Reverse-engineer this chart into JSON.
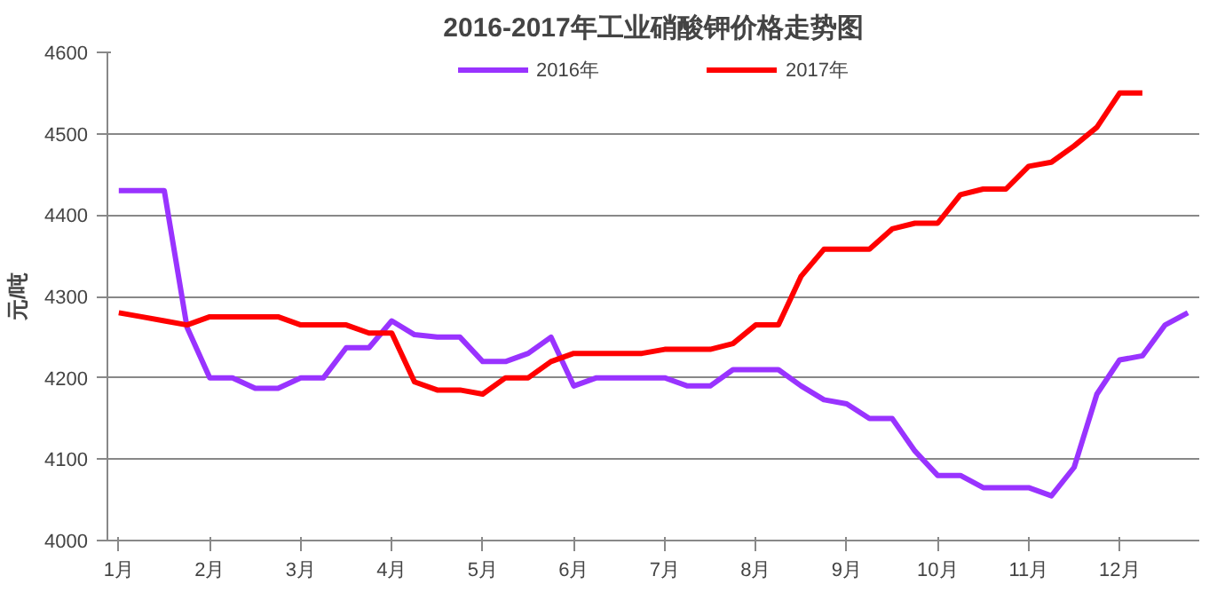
{
  "chart_data": {
    "type": "line",
    "title": "2016-2017年工业硝酸钾价格走势图",
    "ylabel": "元/吨",
    "categories": [
      "1月",
      null,
      null,
      null,
      "2月",
      null,
      null,
      null,
      "3月",
      null,
      null,
      null,
      "4月",
      null,
      null,
      null,
      "5月",
      null,
      null,
      null,
      "6月",
      null,
      null,
      null,
      "7月",
      null,
      null,
      null,
      "8月",
      null,
      null,
      null,
      "9月",
      null,
      null,
      null,
      "10月",
      null,
      null,
      null,
      "11月",
      null,
      null,
      null,
      "12月",
      null,
      null,
      null
    ],
    "series": [
      {
        "name": "2016年",
        "color": "#9933ff",
        "values": [
          4430,
          4430,
          4430,
          4262,
          4200,
          4200,
          4187,
          4187,
          4200,
          4200,
          4237,
          4237,
          4270,
          4253,
          4250,
          4250,
          4220,
          4220,
          4230,
          4250,
          4190,
          4200,
          4200,
          4200,
          4200,
          4190,
          4190,
          4210,
          4210,
          4210,
          4190,
          4173,
          4168,
          4150,
          4150,
          4110,
          4080,
          4080,
          4065,
          4065,
          4065,
          4055,
          4090,
          4180,
          4222,
          4227,
          4265,
          4280
        ]
      },
      {
        "name": "2017年",
        "color": "#ff0000",
        "values": [
          4280,
          4275,
          4270,
          4265,
          4275,
          4275,
          4275,
          4275,
          4265,
          4265,
          4265,
          4255,
          4255,
          4195,
          4185,
          4185,
          4180,
          4200,
          4200,
          4220,
          4230,
          4230,
          4230,
          4230,
          4235,
          4235,
          4235,
          4242,
          4265,
          4265,
          4325,
          4358,
          4358,
          4358,
          4383,
          4390,
          4390,
          4425,
          4432,
          4432,
          4460,
          4465,
          4485,
          4508,
          4550,
          4550,
          null,
          null
        ]
      }
    ],
    "ylim": [
      4000,
      4600
    ],
    "yticks": [
      4000,
      4100,
      4200,
      4300,
      4400,
      4500,
      4600
    ],
    "grid": "y",
    "legend": "top",
    "marker": "none",
    "line_style": "solid"
  }
}
